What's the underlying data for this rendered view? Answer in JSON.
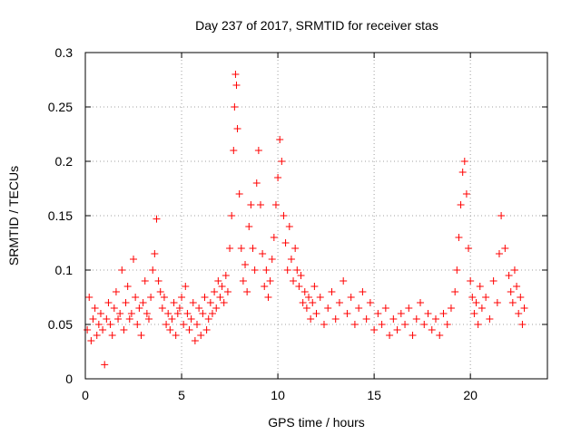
{
  "chart_data": {
    "type": "scatter",
    "title": "Day 237 of 2017, SRMTID for receiver stas",
    "xlabel": "GPS time / hours",
    "ylabel": "SRMTID / TECUs",
    "xlim": [
      0,
      24
    ],
    "ylim": [
      0,
      0.3
    ],
    "x_ticks": [
      0,
      5,
      10,
      15,
      20
    ],
    "x_tick_labels": [
      "0",
      "5",
      "10",
      "15",
      "20"
    ],
    "y_ticks": [
      0,
      0.05,
      0.1,
      0.15,
      0.2,
      0.25,
      0.3
    ],
    "y_tick_labels": [
      "0",
      "0.05",
      "0.1",
      "0.15",
      "0.2",
      "0.25",
      "0.3"
    ],
    "grid": true,
    "marker": "plus",
    "series": [
      {
        "name": "SRMTID",
        "color": "#ff0000",
        "points": [
          [
            0.1,
            0.045
          ],
          [
            0.2,
            0.075
          ],
          [
            0.3,
            0.035
          ],
          [
            0.4,
            0.055
          ],
          [
            0.5,
            0.065
          ],
          [
            0.6,
            0.04
          ],
          [
            0.7,
            0.05
          ],
          [
            0.8,
            0.06
          ],
          [
            0.9,
            0.045
          ],
          [
            1.0,
            0.013
          ],
          [
            1.1,
            0.055
          ],
          [
            1.2,
            0.07
          ],
          [
            1.3,
            0.05
          ],
          [
            1.4,
            0.04
          ],
          [
            1.5,
            0.065
          ],
          [
            1.6,
            0.08
          ],
          [
            1.7,
            0.055
          ],
          [
            1.8,
            0.06
          ],
          [
            1.9,
            0.1
          ],
          [
            2.0,
            0.045
          ],
          [
            2.1,
            0.07
          ],
          [
            2.2,
            0.085
          ],
          [
            2.3,
            0.055
          ],
          [
            2.4,
            0.06
          ],
          [
            2.5,
            0.11
          ],
          [
            2.6,
            0.075
          ],
          [
            2.7,
            0.05
          ],
          [
            2.8,
            0.065
          ],
          [
            2.9,
            0.04
          ],
          [
            3.0,
            0.07
          ],
          [
            3.1,
            0.09
          ],
          [
            3.2,
            0.06
          ],
          [
            3.3,
            0.055
          ],
          [
            3.4,
            0.075
          ],
          [
            3.5,
            0.1
          ],
          [
            3.6,
            0.115
          ],
          [
            3.7,
            0.147
          ],
          [
            3.8,
            0.09
          ],
          [
            3.9,
            0.08
          ],
          [
            4.0,
            0.065
          ],
          [
            4.1,
            0.075
          ],
          [
            4.2,
            0.05
          ],
          [
            4.3,
            0.06
          ],
          [
            4.4,
            0.045
          ],
          [
            4.5,
            0.055
          ],
          [
            4.6,
            0.07
          ],
          [
            4.7,
            0.04
          ],
          [
            4.8,
            0.06
          ],
          [
            4.9,
            0.065
          ],
          [
            5.0,
            0.075
          ],
          [
            5.1,
            0.05
          ],
          [
            5.2,
            0.085
          ],
          [
            5.3,
            0.06
          ],
          [
            5.4,
            0.045
          ],
          [
            5.5,
            0.055
          ],
          [
            5.6,
            0.07
          ],
          [
            5.7,
            0.035
          ],
          [
            5.8,
            0.05
          ],
          [
            5.9,
            0.065
          ],
          [
            6.0,
            0.04
          ],
          [
            6.1,
            0.06
          ],
          [
            6.2,
            0.075
          ],
          [
            6.3,
            0.045
          ],
          [
            6.4,
            0.055
          ],
          [
            6.5,
            0.07
          ],
          [
            6.6,
            0.06
          ],
          [
            6.7,
            0.08
          ],
          [
            6.8,
            0.065
          ],
          [
            6.9,
            0.09
          ],
          [
            7.0,
            0.075
          ],
          [
            7.1,
            0.085
          ],
          [
            7.2,
            0.07
          ],
          [
            7.3,
            0.095
          ],
          [
            7.4,
            0.08
          ],
          [
            7.5,
            0.12
          ],
          [
            7.6,
            0.15
          ],
          [
            7.7,
            0.21
          ],
          [
            7.75,
            0.25
          ],
          [
            7.8,
            0.28
          ],
          [
            7.85,
            0.27
          ],
          [
            7.9,
            0.23
          ],
          [
            8.0,
            0.17
          ],
          [
            8.1,
            0.12
          ],
          [
            8.2,
            0.09
          ],
          [
            8.3,
            0.105
          ],
          [
            8.4,
            0.08
          ],
          [
            8.5,
            0.14
          ],
          [
            8.6,
            0.16
          ],
          [
            8.7,
            0.12
          ],
          [
            8.8,
            0.1
          ],
          [
            8.9,
            0.18
          ],
          [
            9.0,
            0.21
          ],
          [
            9.1,
            0.16
          ],
          [
            9.2,
            0.115
          ],
          [
            9.3,
            0.085
          ],
          [
            9.4,
            0.1
          ],
          [
            9.5,
            0.075
          ],
          [
            9.6,
            0.09
          ],
          [
            9.7,
            0.11
          ],
          [
            9.8,
            0.13
          ],
          [
            9.9,
            0.16
          ],
          [
            10.0,
            0.185
          ],
          [
            10.1,
            0.22
          ],
          [
            10.2,
            0.2
          ],
          [
            10.3,
            0.15
          ],
          [
            10.4,
            0.125
          ],
          [
            10.5,
            0.1
          ],
          [
            10.6,
            0.14
          ],
          [
            10.7,
            0.11
          ],
          [
            10.8,
            0.09
          ],
          [
            10.9,
            0.12
          ],
          [
            11.0,
            0.1
          ],
          [
            11.1,
            0.085
          ],
          [
            11.2,
            0.095
          ],
          [
            11.3,
            0.07
          ],
          [
            11.4,
            0.08
          ],
          [
            11.5,
            0.065
          ],
          [
            11.6,
            0.075
          ],
          [
            11.7,
            0.055
          ],
          [
            11.8,
            0.07
          ],
          [
            11.9,
            0.085
          ],
          [
            12.0,
            0.06
          ],
          [
            12.2,
            0.075
          ],
          [
            12.4,
            0.05
          ],
          [
            12.6,
            0.065
          ],
          [
            12.8,
            0.08
          ],
          [
            13.0,
            0.055
          ],
          [
            13.2,
            0.07
          ],
          [
            13.4,
            0.09
          ],
          [
            13.6,
            0.06
          ],
          [
            13.8,
            0.075
          ],
          [
            14.0,
            0.05
          ],
          [
            14.2,
            0.065
          ],
          [
            14.4,
            0.08
          ],
          [
            14.6,
            0.055
          ],
          [
            14.8,
            0.07
          ],
          [
            15.0,
            0.045
          ],
          [
            15.2,
            0.06
          ],
          [
            15.4,
            0.05
          ],
          [
            15.6,
            0.065
          ],
          [
            15.8,
            0.04
          ],
          [
            16.0,
            0.055
          ],
          [
            16.2,
            0.045
          ],
          [
            16.4,
            0.06
          ],
          [
            16.6,
            0.05
          ],
          [
            16.8,
            0.065
          ],
          [
            17.0,
            0.04
          ],
          [
            17.2,
            0.055
          ],
          [
            17.4,
            0.07
          ],
          [
            17.6,
            0.05
          ],
          [
            17.8,
            0.06
          ],
          [
            18.0,
            0.045
          ],
          [
            18.2,
            0.055
          ],
          [
            18.4,
            0.04
          ],
          [
            18.6,
            0.06
          ],
          [
            18.8,
            0.05
          ],
          [
            19.0,
            0.065
          ],
          [
            19.2,
            0.08
          ],
          [
            19.3,
            0.1
          ],
          [
            19.4,
            0.13
          ],
          [
            19.5,
            0.16
          ],
          [
            19.6,
            0.19
          ],
          [
            19.7,
            0.2
          ],
          [
            19.8,
            0.17
          ],
          [
            19.9,
            0.12
          ],
          [
            20.0,
            0.09
          ],
          [
            20.1,
            0.075
          ],
          [
            20.2,
            0.06
          ],
          [
            20.3,
            0.07
          ],
          [
            20.4,
            0.05
          ],
          [
            20.5,
            0.085
          ],
          [
            20.6,
            0.065
          ],
          [
            20.8,
            0.075
          ],
          [
            21.0,
            0.055
          ],
          [
            21.2,
            0.09
          ],
          [
            21.4,
            0.07
          ],
          [
            21.5,
            0.115
          ],
          [
            21.6,
            0.15
          ],
          [
            21.8,
            0.12
          ],
          [
            22.0,
            0.095
          ],
          [
            22.1,
            0.08
          ],
          [
            22.2,
            0.07
          ],
          [
            22.3,
            0.1
          ],
          [
            22.4,
            0.085
          ],
          [
            22.5,
            0.06
          ],
          [
            22.6,
            0.075
          ],
          [
            22.7,
            0.05
          ],
          [
            22.8,
            0.065
          ]
        ]
      }
    ]
  }
}
